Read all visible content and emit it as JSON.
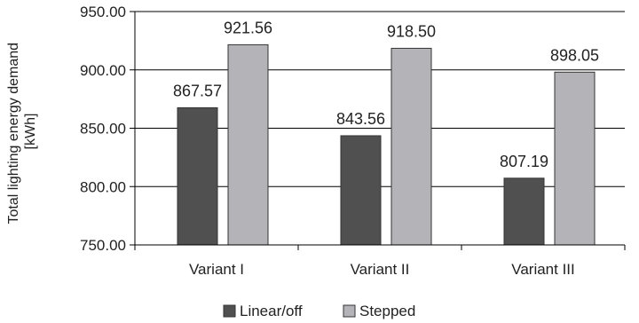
{
  "chart_data": {
    "type": "bar",
    "categories": [
      "Variant I",
      "Variant II",
      "Variant III"
    ],
    "series": [
      {
        "name": "Linear/off",
        "values": [
          867.57,
          843.56,
          807.19
        ],
        "color": "#505050"
      },
      {
        "name": "Stepped",
        "values": [
          921.56,
          918.5,
          898.05
        ],
        "color": "#b4b4b8"
      }
    ],
    "data_labels": [
      [
        "867.57",
        "843.56",
        "807.19"
      ],
      [
        "921.56",
        "918.50",
        "898.05"
      ]
    ],
    "title": "",
    "xlabel": "",
    "ylabel_lines": [
      "Total lighting energy demand",
      "[kWh]"
    ],
    "ylim": [
      750,
      950
    ],
    "yticks": [
      750,
      800,
      850,
      900,
      950
    ],
    "ytick_labels": [
      "750.00",
      "800.00",
      "850.00",
      "900.00",
      "950.00"
    ],
    "grid": true,
    "legend_position": "bottom"
  }
}
